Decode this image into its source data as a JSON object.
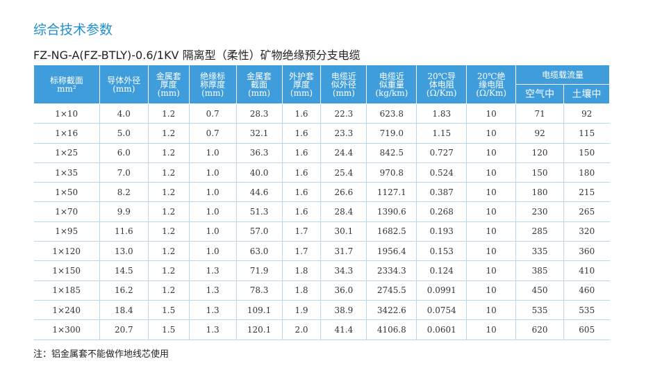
{
  "header": {
    "title": "综合技术参数",
    "subtitle": "FZ-NG-A(FZ-BTLY)-0.6/1KV 隔离型（柔性）矿物绝缘预分支电缆"
  },
  "table": {
    "columns": [
      [
        "标称截面",
        "mm²"
      ],
      [
        "导体外径",
        "(mm)"
      ],
      [
        "金属套",
        "厚度",
        "(mm)"
      ],
      [
        "绝缘标",
        "称厚度",
        "(mm)"
      ],
      [
        "金属套",
        "截面",
        "(mm)"
      ],
      [
        "外护套",
        "厚度",
        "(mm)"
      ],
      [
        "电缆近",
        "似外径",
        "(mm)"
      ],
      [
        "电缆近",
        "似重量",
        "(kg/km)"
      ],
      [
        "20℃导",
        "体电阻",
        "(Ω/Km)"
      ],
      [
        "20℃绝",
        "缘电阻",
        "(Ω/Km)"
      ]
    ],
    "group": "电缆载流量",
    "subcolumns": [
      "空气中",
      "土壤中"
    ],
    "rows": [
      [
        "1×10",
        "4.0",
        "1.2",
        "0.7",
        "28.3",
        "1.6",
        "22.3",
        "623.8",
        "1.83",
        "10",
        "71",
        "92"
      ],
      [
        "1×16",
        "5.0",
        "1.2",
        "0.7",
        "32.1",
        "1.6",
        "23.3",
        "719.0",
        "1.15",
        "10",
        "92",
        "115"
      ],
      [
        "1×25",
        "6.0",
        "1.2",
        "1.0",
        "36.3",
        "1.6",
        "24.4",
        "842.5",
        "0.727",
        "10",
        "120",
        "150"
      ],
      [
        "1×35",
        "7.0",
        "1.2",
        "1.0",
        "40.0",
        "1.6",
        "25.4",
        "970.8",
        "0.524",
        "10",
        "150",
        "180"
      ],
      [
        "1×50",
        "8.2",
        "1.2",
        "1.0",
        "44.6",
        "1.6",
        "26.6",
        "1127.1",
        "0.387",
        "10",
        "180",
        "215"
      ],
      [
        "1×70",
        "9.9",
        "1.2",
        "1.0",
        "51.3",
        "1.6",
        "28.4",
        "1390.6",
        "0.268",
        "10",
        "230",
        "265"
      ],
      [
        "1×95",
        "11.6",
        "1.2",
        "1.0",
        "57.0",
        "1.7",
        "30.1",
        "1682.5",
        "0.193",
        "10",
        "285",
        "320"
      ],
      [
        "1×120",
        "13.0",
        "1.2",
        "1.0",
        "63.0",
        "1.7",
        "31.7",
        "1956.4",
        "0.153",
        "10",
        "335",
        "360"
      ],
      [
        "1×150",
        "14.5",
        "1.2",
        "1.3",
        "71.9",
        "1.8",
        "34.3",
        "2334.3",
        "0.124",
        "10",
        "385",
        "410"
      ],
      [
        "1×185",
        "16.2",
        "1.2",
        "1.3",
        "78.3",
        "1.8",
        "36.0",
        "2745.5",
        "0.0991",
        "10",
        "450",
        "460"
      ],
      [
        "1×240",
        "18.4",
        "1.5",
        "1.3",
        "109.1",
        "1.9",
        "38.9",
        "3422.6",
        "0.0754",
        "10",
        "535",
        "535"
      ],
      [
        "1×300",
        "20.7",
        "1.5",
        "1.3",
        "120.1",
        "2.0",
        "41.4",
        "4106.8",
        "0.0601",
        "10",
        "620",
        "605"
      ]
    ]
  },
  "note": "注：铝金属套不能做作地线芯使用"
}
